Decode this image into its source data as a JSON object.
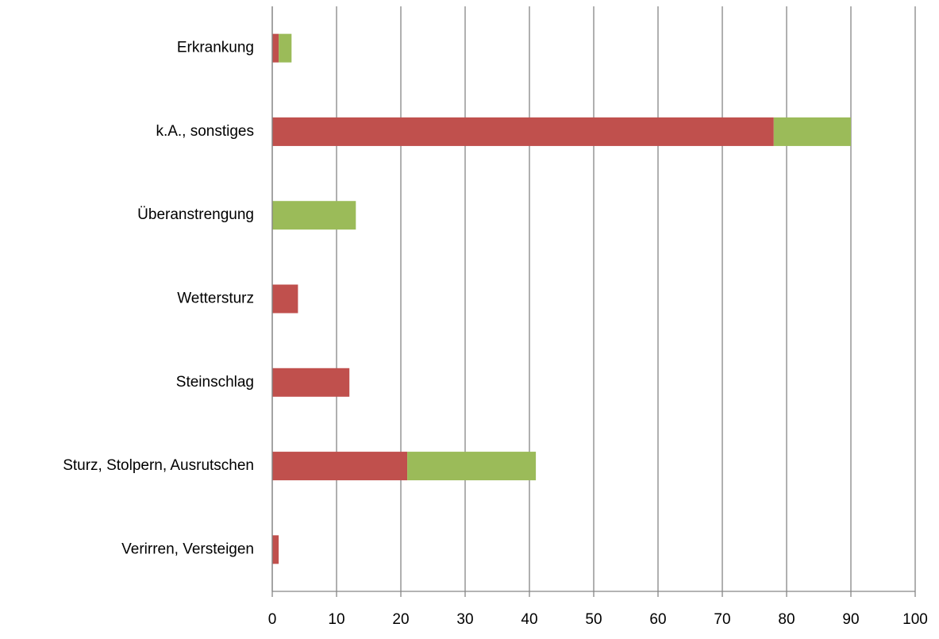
{
  "chart_data": {
    "type": "stacked-barh",
    "categories": [
      "Erkrankung",
      "k.A., sonstiges",
      "Überanstrengung",
      "Wettersturz",
      "Steinschlag",
      "Sturz, Stolpern, Ausrutschen",
      "Verirren, Versteigen"
    ],
    "series": [
      {
        "color": "#c0504d",
        "values": [
          1,
          78,
          0,
          4,
          12,
          21,
          1
        ]
      },
      {
        "color": "#9bbb59",
        "values": [
          2,
          12,
          13,
          0,
          0,
          20,
          0
        ]
      }
    ],
    "xlim": [
      0,
      100
    ],
    "xticks": [
      0,
      10,
      20,
      30,
      40,
      50,
      60,
      70,
      80,
      90,
      100
    ],
    "grid": true
  }
}
